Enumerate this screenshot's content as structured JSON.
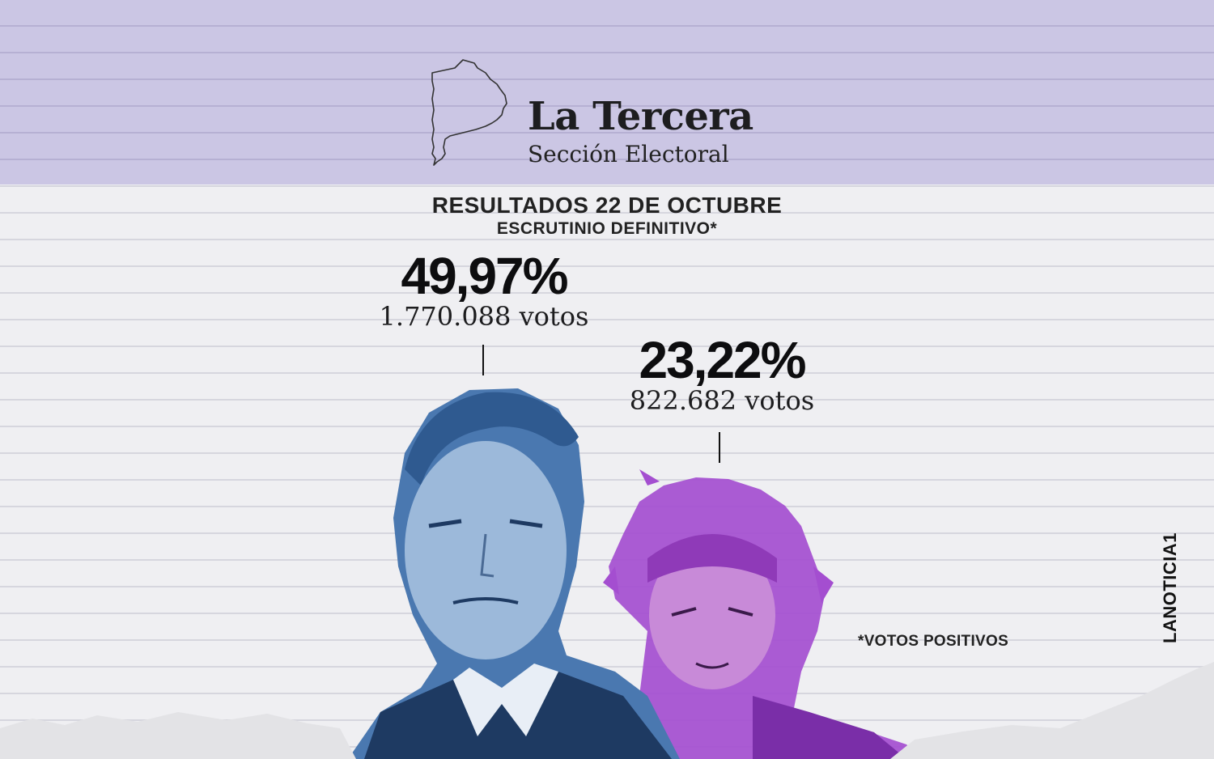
{
  "brand": {
    "title": "La Tercera",
    "subtitle": "Sección Electoral",
    "icon": "buenos-aires-province-outline-icon"
  },
  "results": {
    "title": "RESULTADOS 22 DE OCTUBRE",
    "subtitle": "ESCRUTINIO DEFINITIVO*"
  },
  "candidates": [
    {
      "percent": "49,97%",
      "votes": "1.770.088  votos",
      "photo_tint": "#4a78b0"
    },
    {
      "percent": "23,22%",
      "votes": "822.682 votos",
      "photo_tint": "#a44ed0"
    }
  ],
  "footnote": "*VOTOS POSITIVOS",
  "credit": "LANOTICIA1",
  "colors": {
    "header_band": "#cbc6e4",
    "paper": "#efeff2",
    "text": "#1d1d1f"
  }
}
